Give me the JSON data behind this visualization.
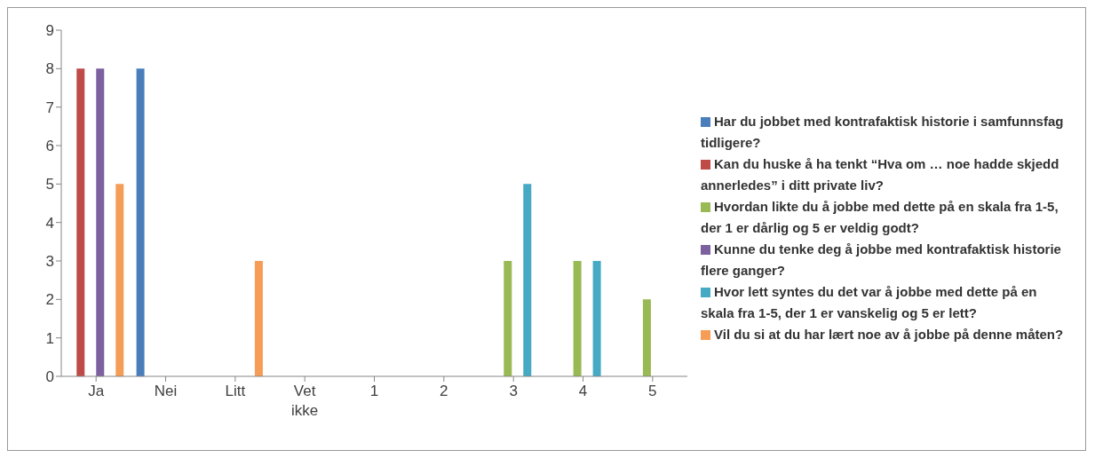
{
  "chart_data": {
    "type": "bar",
    "categories": [
      "Ja",
      "Nei",
      "Litt",
      "Vet ikke",
      "1",
      "2",
      "3",
      "4",
      "5"
    ],
    "series": [
      {
        "name": "Har du jobbet med kontrafaktisk historie i samfunnsfag tidligere?",
        "color": "#4a7ebb",
        "values": [
          0,
          8,
          0,
          0,
          0,
          0,
          0,
          0,
          0
        ]
      },
      {
        "name": "Kan du huske å ha tenkt “Hva om … noe hadde skjedd annerledes” i ditt private liv?",
        "color": "#be4b48",
        "values": [
          8,
          0,
          0,
          0,
          0,
          0,
          0,
          0,
          0
        ]
      },
      {
        "name": "Hvordan likte du å jobbe med dette på en skala fra 1-5, der 1 er dårlig og 5 er veldig godt?",
        "color": "#98b954",
        "values": [
          0,
          0,
          0,
          0,
          0,
          0,
          3,
          3,
          2
        ]
      },
      {
        "name": "Kunne du tenke deg å jobbe med kontrafaktisk historie flere ganger?",
        "color": "#7d60a0",
        "values": [
          8,
          0,
          0,
          0,
          0,
          0,
          0,
          0,
          0
        ]
      },
      {
        "name": "Hvor lett syntes du det var å jobbe med dette på en skala fra 1-5, der 1 er vanskelig og 5 er lett?",
        "color": "#46aac5",
        "values": [
          0,
          0,
          0,
          0,
          0,
          0,
          5,
          3,
          0
        ]
      },
      {
        "name": "Vil du si at du har lært noe av å jobbe på denne måten?",
        "color": "#f59d56",
        "values": [
          5,
          0,
          3,
          0,
          0,
          0,
          0,
          0,
          0
        ]
      }
    ],
    "ylim": [
      0,
      9
    ],
    "yticks": [
      0,
      1,
      2,
      3,
      4,
      5,
      6,
      7,
      8,
      9
    ],
    "legend": "right"
  }
}
